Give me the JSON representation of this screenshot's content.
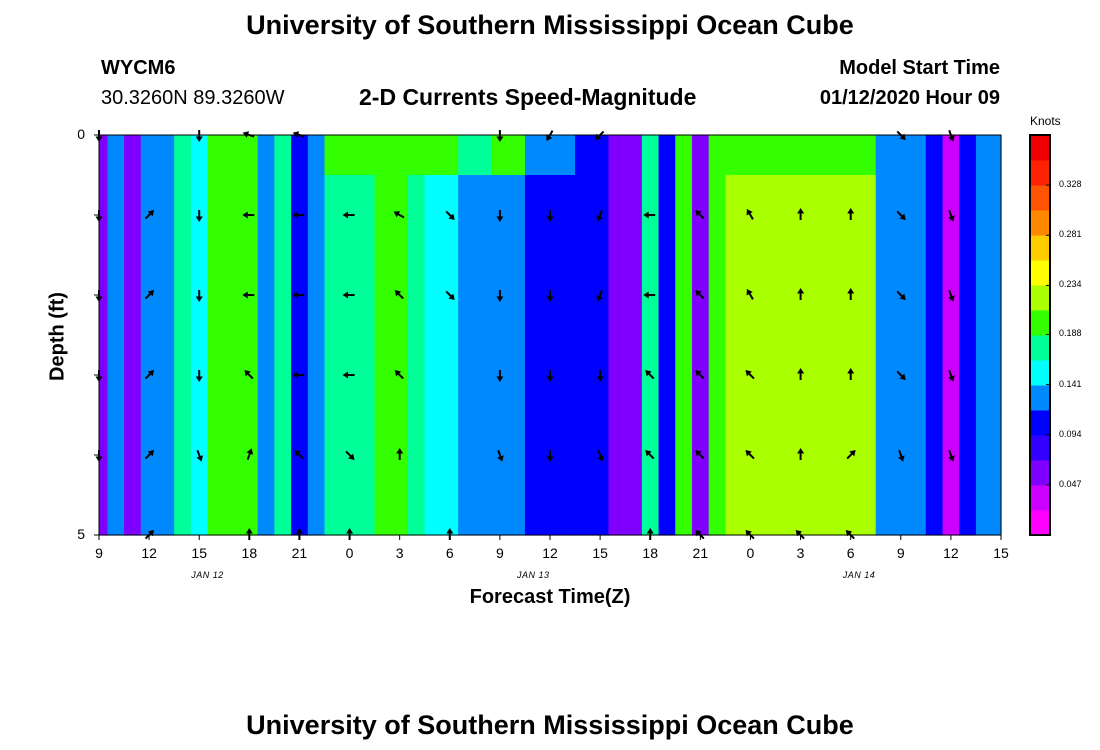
{
  "page": {
    "title_top": "University of Southern Mississippi Ocean Cube",
    "title_bottom": "University of Southern Mississippi Ocean Cube",
    "station_id": "WYCM6",
    "station_coords": "30.3260N 89.3260W",
    "plot_title": "2-D Currents Speed-Magnitude",
    "model_start_label": "Model Start Time",
    "model_start_value": "01/12/2020 Hour 09"
  },
  "colors": {
    "scale": [
      "#ff00ff",
      "#cc00ff",
      "#8000ff",
      "#3300ff",
      "#0000ff",
      "#0088ff",
      "#00ffff",
      "#00ff99",
      "#33ff00",
      "#aaff00",
      "#ffff00",
      "#ffcc00",
      "#ff8800",
      "#ff5500",
      "#ff2200",
      "#ee0000"
    ],
    "border": "#000000",
    "arrow": "#000000"
  },
  "chart_data": {
    "type": "heatmap",
    "title": "2-D Currents Speed-Magnitude",
    "xlabel": "Forecast Time(Z)",
    "ylabel": "Depth (ft)",
    "units": "Knots",
    "color_range": [
      0.0,
      0.375
    ],
    "colorbar_ticks": [
      "0.047",
      "0.094",
      "0.141",
      "0.188",
      "0.234",
      "0.281",
      "0.328"
    ],
    "colorbar_tick_values": [
      0.047,
      0.094,
      0.141,
      0.188,
      0.234,
      0.281,
      0.328
    ],
    "x_tick_labels": [
      "9",
      "12",
      "15",
      "18",
      "21",
      "0",
      "3",
      "6",
      "9",
      "12",
      "15",
      "18",
      "21",
      "0",
      "3",
      "6",
      "9",
      "12",
      "15"
    ],
    "date_labels": [
      {
        "label": "JAN 12",
        "hour": 6.5
      },
      {
        "label": "JAN 13",
        "hour": 26
      },
      {
        "label": "JAN 14",
        "hour": 45.5
      }
    ],
    "x_range_hours": [
      0,
      54
    ],
    "y_tick_labels": [
      {
        "label": "0",
        "depth": 0
      },
      {
        "label": "5",
        "depth": 5
      }
    ],
    "y_range": [
      0,
      5
    ],
    "depth_levels": [
      0.0,
      0.5,
      1.5,
      2.5,
      3.5,
      4.5,
      5.0
    ],
    "hours": [
      0,
      1,
      2,
      3,
      4,
      5,
      6,
      7,
      8,
      9,
      10,
      11,
      12,
      13,
      14,
      15,
      16,
      17,
      18,
      19,
      20,
      21,
      22,
      23,
      24,
      25,
      26,
      27,
      28,
      29,
      30,
      31,
      32,
      33,
      34,
      35,
      36,
      37,
      38,
      39,
      40,
      41,
      42,
      43,
      44,
      45,
      46,
      47,
      48,
      49,
      50,
      51,
      52,
      53,
      54
    ],
    "speed": [
      [
        0.06,
        0.14,
        0.06,
        0.12,
        0.12,
        0.17,
        0.15,
        0.2,
        0.2,
        0.2,
        0.13,
        0.17,
        0.11,
        0.12,
        0.2,
        0.2,
        0.21,
        0.21,
        0.21,
        0.21,
        0.21,
        0.21,
        0.17,
        0.17,
        0.2,
        0.2,
        0.13,
        0.13,
        0.12,
        0.1,
        0.1,
        0.05,
        0.05,
        0.18,
        0.1,
        0.2,
        0.06,
        0.2,
        0.21,
        0.21,
        0.21,
        0.21,
        0.21,
        0.21,
        0.21,
        0.21,
        0.21,
        0.14,
        0.14,
        0.12,
        0.11,
        0.04,
        0.11,
        0.14,
        0.13
      ],
      [
        0.06,
        0.14,
        0.06,
        0.12,
        0.12,
        0.17,
        0.15,
        0.2,
        0.2,
        0.2,
        0.13,
        0.17,
        0.11,
        0.12,
        0.17,
        0.18,
        0.18,
        0.19,
        0.19,
        0.17,
        0.16,
        0.15,
        0.14,
        0.13,
        0.12,
        0.12,
        0.11,
        0.11,
        0.11,
        0.1,
        0.1,
        0.05,
        0.05,
        0.18,
        0.1,
        0.2,
        0.06,
        0.2,
        0.22,
        0.22,
        0.22,
        0.22,
        0.22,
        0.22,
        0.22,
        0.22,
        0.22,
        0.14,
        0.14,
        0.12,
        0.11,
        0.04,
        0.11,
        0.14,
        0.13
      ],
      [
        0.06,
        0.14,
        0.06,
        0.12,
        0.12,
        0.17,
        0.15,
        0.2,
        0.2,
        0.2,
        0.13,
        0.17,
        0.11,
        0.12,
        0.17,
        0.18,
        0.18,
        0.19,
        0.19,
        0.17,
        0.16,
        0.15,
        0.14,
        0.13,
        0.12,
        0.12,
        0.11,
        0.11,
        0.11,
        0.1,
        0.1,
        0.05,
        0.05,
        0.18,
        0.1,
        0.2,
        0.06,
        0.2,
        0.22,
        0.22,
        0.22,
        0.22,
        0.22,
        0.22,
        0.22,
        0.22,
        0.22,
        0.14,
        0.14,
        0.12,
        0.11,
        0.04,
        0.11,
        0.14,
        0.13
      ],
      [
        0.06,
        0.14,
        0.06,
        0.12,
        0.12,
        0.17,
        0.15,
        0.2,
        0.2,
        0.2,
        0.13,
        0.17,
        0.11,
        0.12,
        0.17,
        0.18,
        0.18,
        0.19,
        0.19,
        0.17,
        0.16,
        0.15,
        0.14,
        0.13,
        0.12,
        0.12,
        0.11,
        0.11,
        0.11,
        0.1,
        0.1,
        0.05,
        0.05,
        0.18,
        0.1,
        0.2,
        0.06,
        0.2,
        0.22,
        0.22,
        0.22,
        0.22,
        0.22,
        0.22,
        0.22,
        0.22,
        0.22,
        0.14,
        0.14,
        0.12,
        0.11,
        0.04,
        0.11,
        0.14,
        0.13
      ],
      [
        0.06,
        0.14,
        0.06,
        0.12,
        0.12,
        0.17,
        0.15,
        0.2,
        0.2,
        0.2,
        0.13,
        0.17,
        0.11,
        0.12,
        0.17,
        0.18,
        0.18,
        0.19,
        0.19,
        0.17,
        0.16,
        0.15,
        0.14,
        0.13,
        0.12,
        0.12,
        0.11,
        0.11,
        0.11,
        0.1,
        0.1,
        0.05,
        0.05,
        0.18,
        0.1,
        0.2,
        0.06,
        0.2,
        0.22,
        0.22,
        0.22,
        0.22,
        0.22,
        0.22,
        0.22,
        0.22,
        0.22,
        0.14,
        0.14,
        0.12,
        0.11,
        0.04,
        0.11,
        0.14,
        0.13
      ],
      [
        0.06,
        0.14,
        0.06,
        0.12,
        0.12,
        0.17,
        0.15,
        0.2,
        0.2,
        0.2,
        0.13,
        0.17,
        0.11,
        0.12,
        0.17,
        0.18,
        0.18,
        0.19,
        0.19,
        0.17,
        0.16,
        0.15,
        0.14,
        0.13,
        0.12,
        0.12,
        0.11,
        0.11,
        0.11,
        0.1,
        0.1,
        0.05,
        0.05,
        0.18,
        0.1,
        0.2,
        0.06,
        0.2,
        0.22,
        0.22,
        0.22,
        0.22,
        0.22,
        0.22,
        0.22,
        0.22,
        0.22,
        0.14,
        0.14,
        0.12,
        0.11,
        0.04,
        0.11,
        0.14,
        0.13
      ]
    ],
    "vectors": [
      {
        "hour": 0,
        "depth": 0.0,
        "dir": 180
      },
      {
        "hour": 6,
        "depth": 0.0,
        "dir": 180
      },
      {
        "hour": 9,
        "depth": 0.0,
        "dir": 290
      },
      {
        "hour": 12,
        "depth": 0.0,
        "dir": 290
      },
      {
        "hour": 24,
        "depth": 0.0,
        "dir": 180
      },
      {
        "hour": 27,
        "depth": 0.0,
        "dir": 210
      },
      {
        "hour": 30,
        "depth": 0.0,
        "dir": 225
      },
      {
        "hour": 48,
        "depth": 0.0,
        "dir": 135
      },
      {
        "hour": 51,
        "depth": 0.0,
        "dir": 160
      },
      {
        "hour": 0,
        "depth": 1.0,
        "dir": 180
      },
      {
        "hour": 3,
        "depth": 1.0,
        "dir": 45
      },
      {
        "hour": 6,
        "depth": 1.0,
        "dir": 180
      },
      {
        "hour": 9,
        "depth": 1.0,
        "dir": 270
      },
      {
        "hour": 12,
        "depth": 1.0,
        "dir": 270
      },
      {
        "hour": 15,
        "depth": 1.0,
        "dir": 270
      },
      {
        "hour": 18,
        "depth": 1.0,
        "dir": 300
      },
      {
        "hour": 21,
        "depth": 1.0,
        "dir": 135
      },
      {
        "hour": 24,
        "depth": 1.0,
        "dir": 180
      },
      {
        "hour": 27,
        "depth": 1.0,
        "dir": 180
      },
      {
        "hour": 30,
        "depth": 1.0,
        "dir": 200
      },
      {
        "hour": 33,
        "depth": 1.0,
        "dir": 270
      },
      {
        "hour": 36,
        "depth": 1.0,
        "dir": 315
      },
      {
        "hour": 39,
        "depth": 1.0,
        "dir": 330
      },
      {
        "hour": 42,
        "depth": 1.0,
        "dir": 0
      },
      {
        "hour": 45,
        "depth": 1.0,
        "dir": 0
      },
      {
        "hour": 48,
        "depth": 1.0,
        "dir": 135
      },
      {
        "hour": 51,
        "depth": 1.0,
        "dir": 160
      },
      {
        "hour": 0,
        "depth": 2.0,
        "dir": 180
      },
      {
        "hour": 3,
        "depth": 2.0,
        "dir": 45
      },
      {
        "hour": 6,
        "depth": 2.0,
        "dir": 180
      },
      {
        "hour": 9,
        "depth": 2.0,
        "dir": 270
      },
      {
        "hour": 12,
        "depth": 2.0,
        "dir": 270
      },
      {
        "hour": 15,
        "depth": 2.0,
        "dir": 270
      },
      {
        "hour": 18,
        "depth": 2.0,
        "dir": 315
      },
      {
        "hour": 21,
        "depth": 2.0,
        "dir": 135
      },
      {
        "hour": 24,
        "depth": 2.0,
        "dir": 180
      },
      {
        "hour": 27,
        "depth": 2.0,
        "dir": 180
      },
      {
        "hour": 30,
        "depth": 2.0,
        "dir": 200
      },
      {
        "hour": 33,
        "depth": 2.0,
        "dir": 270
      },
      {
        "hour": 36,
        "depth": 2.0,
        "dir": 315
      },
      {
        "hour": 39,
        "depth": 2.0,
        "dir": 330
      },
      {
        "hour": 42,
        "depth": 2.0,
        "dir": 0
      },
      {
        "hour": 45,
        "depth": 2.0,
        "dir": 0
      },
      {
        "hour": 48,
        "depth": 2.0,
        "dir": 135
      },
      {
        "hour": 51,
        "depth": 2.0,
        "dir": 160
      },
      {
        "hour": 0,
        "depth": 3.0,
        "dir": 180
      },
      {
        "hour": 3,
        "depth": 3.0,
        "dir": 45
      },
      {
        "hour": 6,
        "depth": 3.0,
        "dir": 180
      },
      {
        "hour": 9,
        "depth": 3.0,
        "dir": 315
      },
      {
        "hour": 12,
        "depth": 3.0,
        "dir": 270
      },
      {
        "hour": 15,
        "depth": 3.0,
        "dir": 270
      },
      {
        "hour": 18,
        "depth": 3.0,
        "dir": 315
      },
      {
        "hour": 24,
        "depth": 3.0,
        "dir": 180
      },
      {
        "hour": 27,
        "depth": 3.0,
        "dir": 180
      },
      {
        "hour": 30,
        "depth": 3.0,
        "dir": 180
      },
      {
        "hour": 33,
        "depth": 3.0,
        "dir": 315
      },
      {
        "hour": 36,
        "depth": 3.0,
        "dir": 315
      },
      {
        "hour": 39,
        "depth": 3.0,
        "dir": 315
      },
      {
        "hour": 42,
        "depth": 3.0,
        "dir": 0
      },
      {
        "hour": 45,
        "depth": 3.0,
        "dir": 0
      },
      {
        "hour": 48,
        "depth": 3.0,
        "dir": 135
      },
      {
        "hour": 51,
        "depth": 3.0,
        "dir": 160
      },
      {
        "hour": 0,
        "depth": 4.0,
        "dir": 180
      },
      {
        "hour": 3,
        "depth": 4.0,
        "dir": 45
      },
      {
        "hour": 6,
        "depth": 4.0,
        "dir": 160
      },
      {
        "hour": 9,
        "depth": 4.0,
        "dir": 20
      },
      {
        "hour": 12,
        "depth": 4.0,
        "dir": 315
      },
      {
        "hour": 15,
        "depth": 4.0,
        "dir": 135
      },
      {
        "hour": 18,
        "depth": 4.0,
        "dir": 0
      },
      {
        "hour": 24,
        "depth": 4.0,
        "dir": 160
      },
      {
        "hour": 27,
        "depth": 4.0,
        "dir": 180
      },
      {
        "hour": 30,
        "depth": 4.0,
        "dir": 160
      },
      {
        "hour": 33,
        "depth": 4.0,
        "dir": 315
      },
      {
        "hour": 36,
        "depth": 4.0,
        "dir": 315
      },
      {
        "hour": 39,
        "depth": 4.0,
        "dir": 315
      },
      {
        "hour": 42,
        "depth": 4.0,
        "dir": 0
      },
      {
        "hour": 45,
        "depth": 4.0,
        "dir": 45
      },
      {
        "hour": 48,
        "depth": 4.0,
        "dir": 160
      },
      {
        "hour": 51,
        "depth": 4.0,
        "dir": 160
      },
      {
        "hour": 3,
        "depth": 5.0,
        "dir": 45
      },
      {
        "hour": 9,
        "depth": 5.0,
        "dir": 0
      },
      {
        "hour": 12,
        "depth": 5.0,
        "dir": 0
      },
      {
        "hour": 15,
        "depth": 5.0,
        "dir": 0
      },
      {
        "hour": 21,
        "depth": 5.0,
        "dir": 0
      },
      {
        "hour": 33,
        "depth": 5.0,
        "dir": 0
      },
      {
        "hour": 36,
        "depth": 5.0,
        "dir": 315
      },
      {
        "hour": 39,
        "depth": 5.0,
        "dir": 315
      },
      {
        "hour": 42,
        "depth": 5.0,
        "dir": 315
      },
      {
        "hour": 45,
        "depth": 5.0,
        "dir": 315
      }
    ]
  }
}
